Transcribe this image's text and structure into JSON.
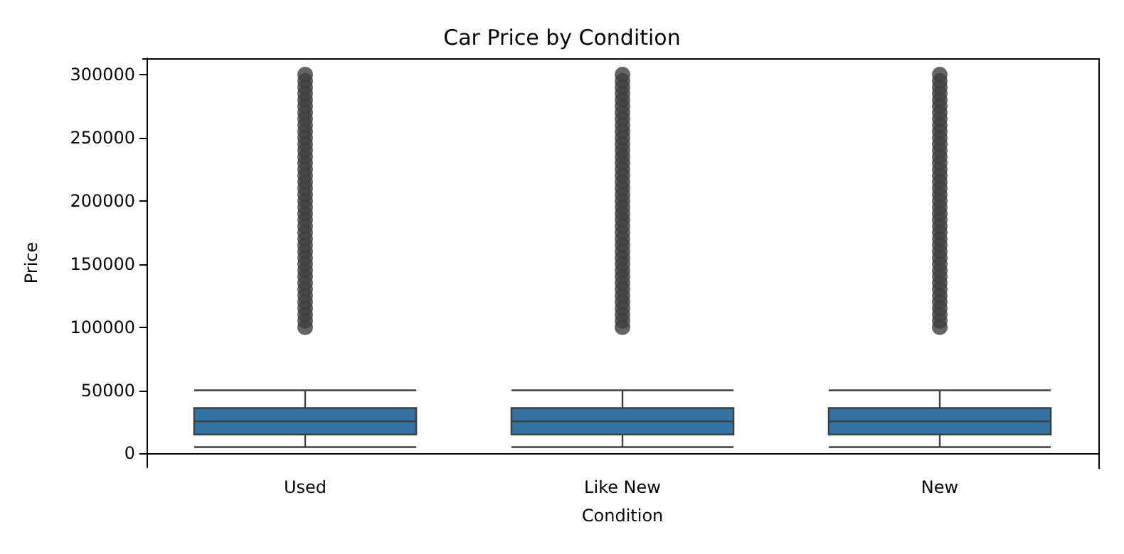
{
  "chart_data": {
    "type": "box",
    "title": "Car Price by Condition",
    "xlabel": "Condition",
    "ylabel": "Price",
    "categories": [
      "Used",
      "Like New",
      "New"
    ],
    "color": "#3274a1",
    "boxes": [
      {
        "low": 5000,
        "q1": 15000,
        "median": 25500,
        "q3": 36000,
        "high": 50000,
        "outliers": [
          100000,
          105000,
          110000,
          115000,
          120000,
          125000,
          130000,
          135000,
          140000,
          145000,
          150000,
          155000,
          160000,
          165000,
          170000,
          175000,
          180000,
          185000,
          190000,
          195000,
          200000,
          205000,
          210000,
          215000,
          220000,
          225000,
          230000,
          235000,
          240000,
          245000,
          250000,
          255000,
          260000,
          265000,
          270000,
          275000,
          280000,
          285000,
          290000,
          295000,
          300000
        ]
      },
      {
        "low": 5000,
        "q1": 15000,
        "median": 25500,
        "q3": 36000,
        "high": 50000,
        "outliers": [
          100000,
          105000,
          110000,
          115000,
          120000,
          125000,
          130000,
          135000,
          140000,
          145000,
          150000,
          155000,
          160000,
          165000,
          170000,
          175000,
          180000,
          185000,
          190000,
          195000,
          200000,
          205000,
          210000,
          215000,
          220000,
          225000,
          230000,
          235000,
          240000,
          245000,
          250000,
          255000,
          260000,
          265000,
          270000,
          275000,
          280000,
          285000,
          290000,
          295000,
          300000
        ]
      },
      {
        "low": 5000,
        "q1": 15000,
        "median": 25500,
        "q3": 36000,
        "high": 50000,
        "outliers": [
          100000,
          105000,
          110000,
          115000,
          120000,
          125000,
          130000,
          135000,
          140000,
          145000,
          150000,
          155000,
          160000,
          165000,
          170000,
          175000,
          180000,
          185000,
          190000,
          195000,
          200000,
          205000,
          210000,
          215000,
          220000,
          225000,
          230000,
          235000,
          240000,
          245000,
          250000,
          255000,
          260000,
          265000,
          270000,
          275000,
          280000,
          285000,
          290000,
          295000,
          300000
        ]
      }
    ],
    "ylim": [
      -11000,
      313000
    ],
    "yticks": [
      0,
      50000,
      100000,
      150000,
      200000,
      250000,
      300000
    ],
    "grid": false
  }
}
